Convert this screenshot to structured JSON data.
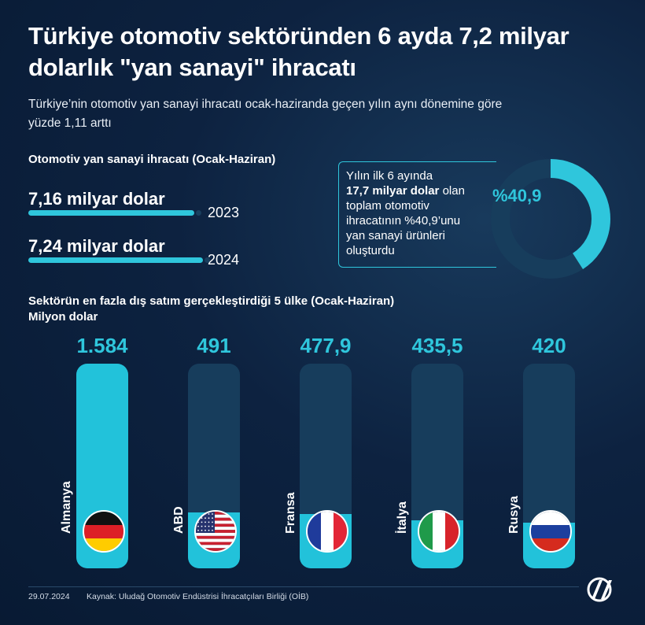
{
  "title": "Türkiye otomotiv sektöründen 6 ayda 7,2 milyar dolarlık \"yan sanayi\" ihracatı",
  "subtitle": "Türkiye’nin otomotiv yan sanayi ihracatı ocak-haziranda geçen yılın aynı dönemine göre yüzde 1,11 arttı",
  "exports_section": {
    "title": "Otomotiv yan sanayi ihracatı (Ocak-Haziran)",
    "rows": [
      {
        "year": "2023",
        "value_label": "7,16 milyar dolar",
        "value": 7.16
      },
      {
        "year": "2024",
        "value_label": "7,24 milyar dolar",
        "value": 7.24
      }
    ]
  },
  "share_box": {
    "line1": "Yılın ilk 6 ayında",
    "bold": "17,7 milyar dolar",
    "line2_rest": " olan",
    "line3": "toplam otomotiv",
    "line4": "ihracatının %40,9’unu",
    "line5": "yan sanayi ürünleri",
    "line6": "oluşturdu",
    "percent_label": "%40,9",
    "percent_value": 40.9
  },
  "chart_data": {
    "type": "bar",
    "title": "Sektörün en fazla dış satım gerçekleştirdiği 5 ülke (Ocak-Haziran)",
    "ylabel": "Milyon dolar",
    "categories": [
      "Almanya",
      "ABD",
      "Fransa",
      "İtalya",
      "Rusya"
    ],
    "value_labels": [
      "1.584",
      "491",
      "477,9",
      "435,5",
      "420"
    ],
    "values": [
      1584,
      491,
      477.9,
      435.5,
      420
    ],
    "ylim": [
      0,
      1584
    ]
  },
  "flags": [
    "germany-flag",
    "usa-flag",
    "france-flag",
    "italy-flag",
    "russia-flag"
  ],
  "colors": {
    "accent": "#2fc6dc",
    "background": "#0d2240",
    "track": "#173d5c"
  },
  "footer": {
    "date": "29.07.2024",
    "source": "Kaynak: Uludağ Otomotiv Endüstrisi İhracatçıları Birliği (OİB)",
    "logo": "AA"
  }
}
